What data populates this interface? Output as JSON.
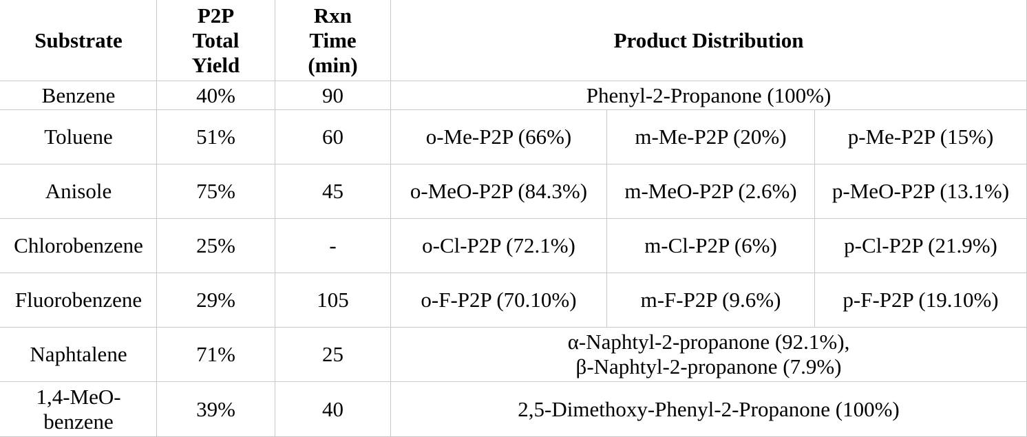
{
  "table": {
    "headers": {
      "substrate": "Substrate",
      "yield": [
        "P2P",
        "Total",
        "Yield"
      ],
      "time": [
        "Rxn",
        "Time",
        "(min)"
      ],
      "distribution": "Product Distribution"
    },
    "rows": [
      {
        "substrate": [
          "Benzene"
        ],
        "yield": "40%",
        "time": "90",
        "products": [
          "Phenyl-2-Propanone (100%)"
        ]
      },
      {
        "substrate": [
          "Toluene"
        ],
        "yield": "51%",
        "time": "60",
        "products": [
          "o-Me-P2P (66%)",
          "m-Me-P2P (20%)",
          "p-Me-P2P (15%)"
        ]
      },
      {
        "substrate": [
          "Anisole"
        ],
        "yield": "75%",
        "time": "45",
        "products": [
          "o-MeO-P2P (84.3%)",
          "m-MeO-P2P (2.6%)",
          "p-MeO-P2P (13.1%)"
        ]
      },
      {
        "substrate": [
          "Chlorobenzene"
        ],
        "yield": "25%",
        "time": "-",
        "products": [
          "o-Cl-P2P (72.1%)",
          "m-Cl-P2P (6%)",
          "p-Cl-P2P (21.9%)"
        ]
      },
      {
        "substrate": [
          "Fluorobenzene"
        ],
        "yield": "29%",
        "time": "105",
        "products": [
          "o-F-P2P (70.10%)",
          "m-F-P2P (9.6%)",
          "p-F-P2P (19.10%)"
        ]
      },
      {
        "substrate": [
          "Naphtalene"
        ],
        "yield": "71%",
        "time": "25",
        "products": [
          "α-Naphtyl-2-propanone (92.1%),",
          "β-Naphtyl-2-propanone (7.9%)"
        ]
      },
      {
        "substrate": [
          "1,4-MeO-",
          "benzene"
        ],
        "yield": "39%",
        "time": "40",
        "products": [
          "2,5-Dimethoxy-Phenyl-2-Propanone (100%)"
        ]
      }
    ]
  }
}
